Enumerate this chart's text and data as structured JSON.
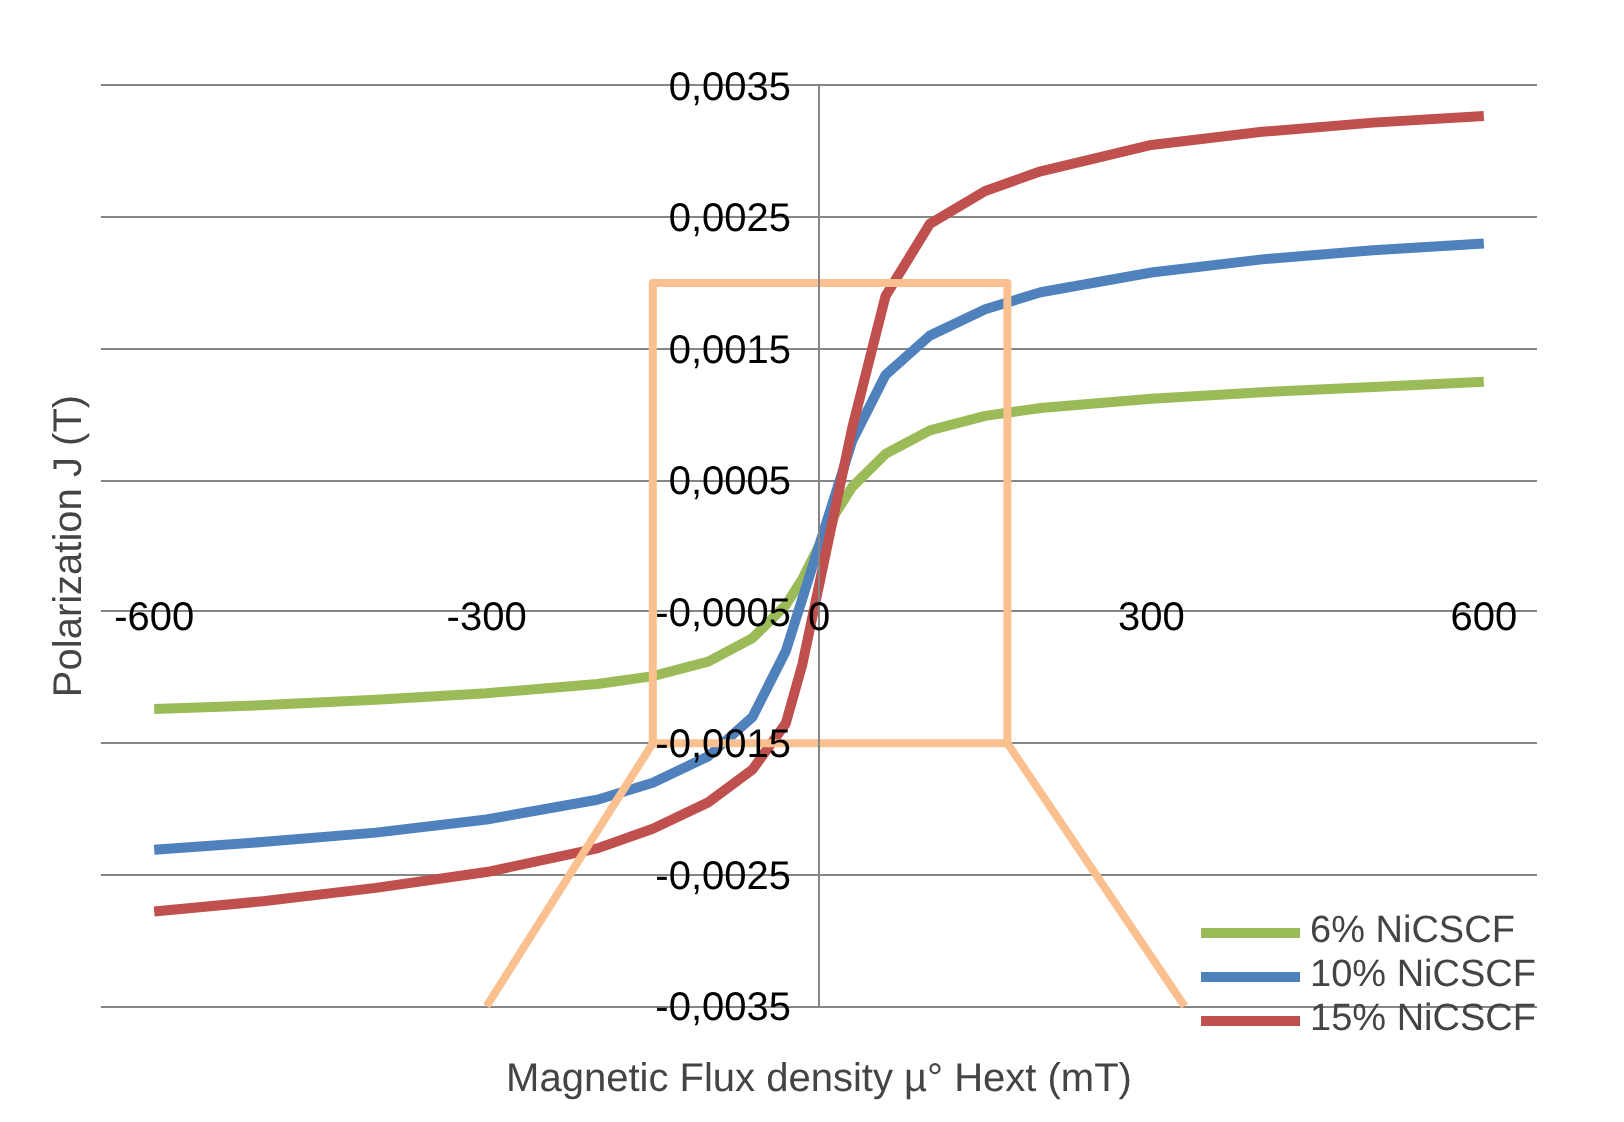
{
  "chart_data": {
    "type": "line",
    "xlabel": "Magnetic Flux density µ° Hext (mT)",
    "ylabel": "Polarization J (T)",
    "x": [
      -600,
      -500,
      -400,
      -300,
      -200,
      -150,
      -100,
      -60,
      -30,
      -15,
      0,
      15,
      30,
      60,
      100,
      150,
      200,
      300,
      400,
      500,
      600
    ],
    "series": [
      {
        "name": "6% NiCSCF",
        "color": "#9bbb59",
        "values": [
          -0.00124,
          -0.00121,
          -0.00117,
          -0.00112,
          -0.00105,
          -0.00099,
          -0.00088,
          -0.0007,
          -0.00045,
          -0.00025,
          0.0,
          0.00025,
          0.00045,
          0.0007,
          0.00088,
          0.00099,
          0.00105,
          0.00112,
          0.00117,
          0.00121,
          0.00125
        ]
      },
      {
        "name": "10% NiCSCF",
        "color": "#4f81bd",
        "values": [
          -0.00231,
          -0.00225,
          -0.00218,
          -0.00208,
          -0.00193,
          -0.0018,
          -0.0016,
          -0.0013,
          -0.0008,
          -0.0004,
          0.0,
          0.0004,
          0.0008,
          0.0013,
          0.0016,
          0.0018,
          0.00193,
          0.00208,
          0.00218,
          0.00225,
          0.0023
        ]
      },
      {
        "name": "15% NiCSCF",
        "color": "#c0504d",
        "values": [
          -0.00278,
          -0.0027,
          -0.0026,
          -0.00248,
          -0.0023,
          -0.00215,
          -0.00195,
          -0.0017,
          -0.00135,
          -0.0009,
          -0.0003,
          0.0003,
          0.0009,
          0.0019,
          0.00245,
          0.0027,
          0.00285,
          0.00305,
          0.00315,
          0.00322,
          0.00327
        ]
      }
    ],
    "xlim": [
      -600,
      600
    ],
    "xticks": [
      -600,
      -300,
      0,
      300,
      600
    ],
    "ylim": [
      -0.0035,
      0.0035
    ],
    "yticks": [
      {
        "value": 0.0035,
        "label": "0,0035"
      },
      {
        "value": 0.0025,
        "label": "0,0025"
      },
      {
        "value": 0.0015,
        "label": "0,0015"
      },
      {
        "value": 0.0005,
        "label": "0,0005"
      },
      {
        "value": -0.0005,
        "label": "-0,0005"
      },
      {
        "value": -0.0015,
        "label": "-0,0015"
      },
      {
        "value": -0.0025,
        "label": "-0,0025"
      },
      {
        "value": -0.0035,
        "label": "-0,0035"
      }
    ],
    "grid": "y",
    "legend": "bottom right",
    "marker": "none",
    "line_style": "solid"
  }
}
